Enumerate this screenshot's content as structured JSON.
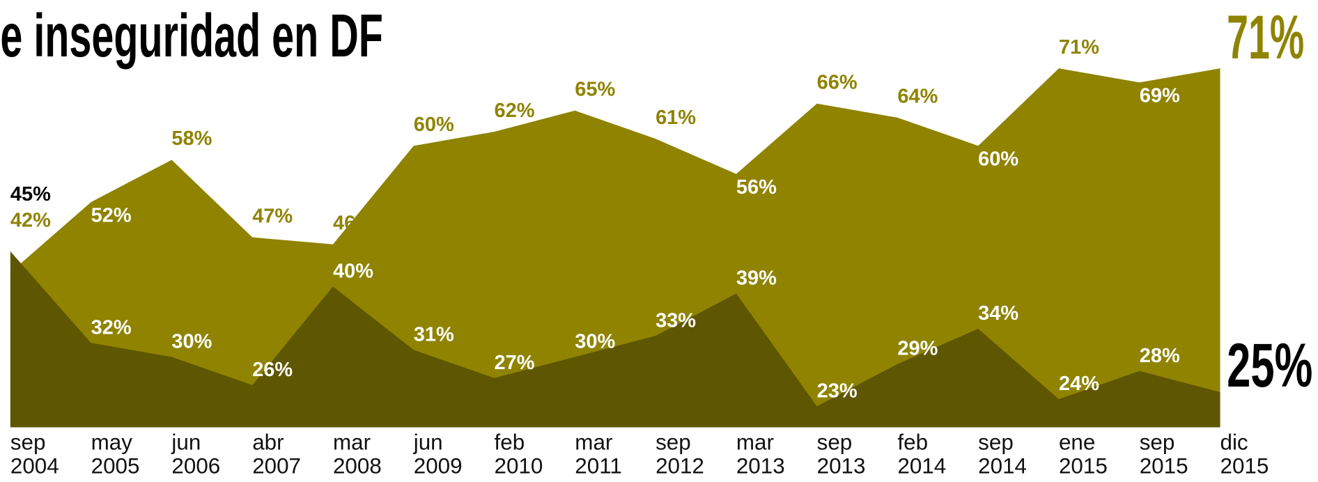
{
  "chart_data": {
    "type": "area",
    "title": "e inseguridad en DF",
    "categories": [
      "sep 2004",
      "may 2005",
      "jun 2006",
      "abr 2007",
      "mar 2008",
      "jun 2009",
      "feb 2010",
      "mar 2011",
      "sep 2012",
      "mar 2013",
      "sep 2013",
      "feb 2014",
      "sep 2014",
      "ene 2015",
      "sep 2015",
      "dic 2015"
    ],
    "series": [
      {
        "color": "#8f8300",
        "values": [
          42,
          52,
          58,
          47,
          46,
          60,
          62,
          65,
          61,
          56,
          66,
          64,
          60,
          71,
          69,
          71
        ],
        "value_labels": [
          "42%",
          "52%",
          "58%",
          "47%",
          "46%",
          "60%",
          "62%",
          "65%",
          "61%",
          "56%",
          "66%",
          "64%",
          "60%",
          "71%",
          "69%",
          "71%"
        ]
      },
      {
        "color": "#5e5600",
        "values": [
          45,
          32,
          30,
          26,
          40,
          31,
          27,
          30,
          33,
          39,
          23,
          29,
          34,
          24,
          28,
          25
        ],
        "value_labels": [
          "45%",
          "32%",
          "30%",
          "26%",
          "40%",
          "31%",
          "27%",
          "30%",
          "33%",
          "39%",
          "23%",
          "29%",
          "34%",
          "24%",
          "28%",
          "25%"
        ]
      }
    ],
    "ylim": [
      20,
      80
    ]
  }
}
